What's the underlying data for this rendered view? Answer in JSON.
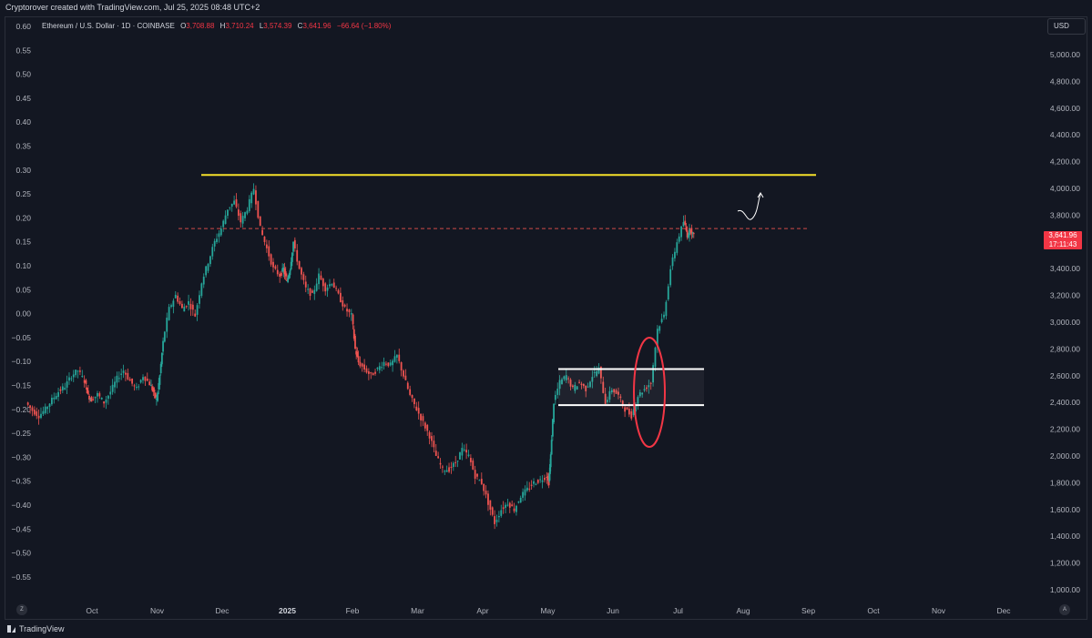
{
  "header": {
    "credit": "Cryptorover created with TradingView.com, Jul 25, 2025 08:48 UTC+2"
  },
  "symbol": {
    "name": "Ethereum / U.S. Dollar · 1D · COINBASE",
    "o_label": "O",
    "o": "3,708.88",
    "h_label": "H",
    "h": "3,710.24",
    "l_label": "L",
    "l": "3,574.39",
    "c_label": "C",
    "c": "3,641.96",
    "change": "−66.64 (−1.80%)"
  },
  "currency_button": "USD",
  "last_price": {
    "price": "3,641.96",
    "countdown": "17:11:43"
  },
  "footer": {
    "brand": "TradingView",
    "left_button": "Z",
    "right_button": "A"
  },
  "colors": {
    "up": "#26a69a",
    "down": "#ef5350",
    "resistance": "#f5e02a",
    "dashed": "#ef5350",
    "box": "#ffffff",
    "ellipse": "#f23645",
    "background": "#131722"
  },
  "chart_data": {
    "type": "candlestick",
    "left_axis": {
      "ticks": [
        "0.60",
        "0.55",
        "0.50",
        "0.45",
        "0.40",
        "0.35",
        "0.30",
        "0.25",
        "0.20",
        "0.15",
        "0.10",
        "0.05",
        "0.00",
        "−0.05",
        "−0.10",
        "−0.15",
        "−0.20",
        "−0.25",
        "−0.30",
        "−0.35",
        "−0.40",
        "−0.45",
        "−0.50",
        "−0.55"
      ]
    },
    "right_axis": {
      "ticks": [
        "5,000.00",
        "4,800.00",
        "4,600.00",
        "4,400.00",
        "4,200.00",
        "4,000.00",
        "3,800.00",
        "3,600.00",
        "3,400.00",
        "3,200.00",
        "3,000.00",
        "2,800.00",
        "2,600.00",
        "2,400.00",
        "2,200.00",
        "2,000.00",
        "1,800.00",
        "1,600.00",
        "1,400.00",
        "1,200.00",
        "1,000.00"
      ],
      "ylim": [
        900,
        5150
      ]
    },
    "x_axis": {
      "ticks": [
        "Oct",
        "Nov",
        "Dec",
        "2025",
        "Feb",
        "Mar",
        "Apr",
        "May",
        "Jun",
        "Jul",
        "Aug",
        "Sep",
        "Oct",
        "Nov",
        "Dec"
      ]
    },
    "start_date": "2024-09-01",
    "closes": [
      [
        9.0,
        2400
      ],
      [
        9.1,
        2340
      ],
      [
        9.2,
        2300
      ],
      [
        9.3,
        2350
      ],
      [
        9.4,
        2420
      ],
      [
        9.5,
        2480
      ],
      [
        9.6,
        2520
      ],
      [
        9.7,
        2600
      ],
      [
        9.8,
        2640
      ],
      [
        9.9,
        2560
      ],
      [
        9.95,
        2450
      ],
      [
        10.0,
        2420
      ],
      [
        10.1,
        2460
      ],
      [
        10.2,
        2400
      ],
      [
        10.3,
        2480
      ],
      [
        10.4,
        2580
      ],
      [
        10.5,
        2640
      ],
      [
        10.6,
        2560
      ],
      [
        10.7,
        2500
      ],
      [
        10.8,
        2600
      ],
      [
        10.9,
        2540
      ],
      [
        10.95,
        2480
      ],
      [
        11.0,
        2420
      ],
      [
        11.05,
        2600
      ],
      [
        11.1,
        2850
      ],
      [
        11.2,
        3100
      ],
      [
        11.3,
        3200
      ],
      [
        11.4,
        3100
      ],
      [
        11.5,
        3150
      ],
      [
        11.6,
        3050
      ],
      [
        11.7,
        3300
      ],
      [
        11.8,
        3450
      ],
      [
        11.9,
        3600
      ],
      [
        12.0,
        3700
      ],
      [
        12.1,
        3850
      ],
      [
        12.2,
        3900
      ],
      [
        12.3,
        3750
      ],
      [
        12.4,
        3850
      ],
      [
        12.5,
        4000
      ],
      [
        12.6,
        3700
      ],
      [
        12.7,
        3550
      ],
      [
        12.8,
        3400
      ],
      [
        12.9,
        3350
      ],
      [
        12.95,
        3400
      ],
      [
        13.0,
        3300
      ],
      [
        13.05,
        3400
      ],
      [
        13.1,
        3600
      ],
      [
        13.2,
        3400
      ],
      [
        13.3,
        3250
      ],
      [
        13.4,
        3200
      ],
      [
        13.5,
        3350
      ],
      [
        13.6,
        3250
      ],
      [
        13.7,
        3300
      ],
      [
        13.8,
        3200
      ],
      [
        13.9,
        3100
      ],
      [
        14.0,
        3050
      ],
      [
        14.05,
        2800
      ],
      [
        14.1,
        2700
      ],
      [
        14.2,
        2650
      ],
      [
        14.3,
        2600
      ],
      [
        14.4,
        2650
      ],
      [
        14.5,
        2700
      ],
      [
        14.6,
        2680
      ],
      [
        14.7,
        2750
      ],
      [
        14.8,
        2600
      ],
      [
        14.9,
        2450
      ],
      [
        15.0,
        2350
      ],
      [
        15.1,
        2250
      ],
      [
        15.2,
        2150
      ],
      [
        15.3,
        2000
      ],
      [
        15.4,
        1900
      ],
      [
        15.5,
        1900
      ],
      [
        15.6,
        1950
      ],
      [
        15.7,
        2050
      ],
      [
        15.8,
        2000
      ],
      [
        15.9,
        1850
      ],
      [
        16.0,
        1800
      ],
      [
        16.1,
        1650
      ],
      [
        16.2,
        1500
      ],
      [
        16.3,
        1600
      ],
      [
        16.4,
        1650
      ],
      [
        16.5,
        1600
      ],
      [
        16.6,
        1700
      ],
      [
        16.7,
        1750
      ],
      [
        16.8,
        1800
      ],
      [
        16.9,
        1820
      ],
      [
        17.0,
        1850
      ],
      [
        17.02,
        1800
      ],
      [
        17.05,
        2000
      ],
      [
        17.1,
        2400
      ],
      [
        17.2,
        2550
      ],
      [
        17.3,
        2600
      ],
      [
        17.4,
        2500
      ],
      [
        17.5,
        2550
      ],
      [
        17.6,
        2500
      ],
      [
        17.7,
        2600
      ],
      [
        17.8,
        2650
      ],
      [
        17.9,
        2400
      ],
      [
        18.0,
        2500
      ],
      [
        18.1,
        2450
      ],
      [
        18.2,
        2350
      ],
      [
        18.3,
        2300
      ],
      [
        18.4,
        2450
      ],
      [
        18.5,
        2500
      ],
      [
        18.6,
        2550
      ],
      [
        18.7,
        2950
      ],
      [
        18.8,
        3050
      ],
      [
        18.9,
        3400
      ],
      [
        19.0,
        3600
      ],
      [
        19.1,
        3750
      ],
      [
        19.15,
        3650
      ],
      [
        19.2,
        3700
      ],
      [
        19.25,
        3641.96
      ]
    ],
    "resistance_price": 4100,
    "dashed_price": 3700,
    "range_box": {
      "top": 2650,
      "bottom": 2380,
      "from": "2025-05-10",
      "to": "2025-07-10"
    }
  }
}
